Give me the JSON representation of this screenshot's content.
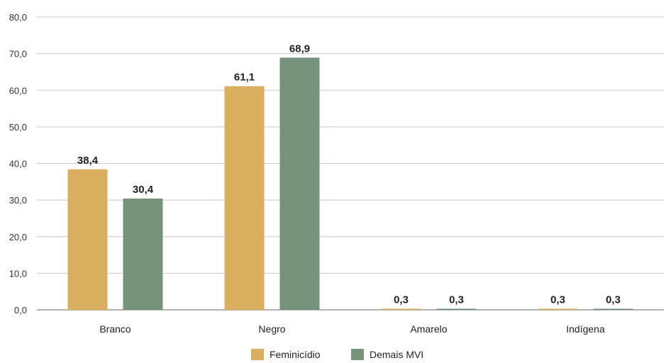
{
  "chart_data": {
    "type": "bar",
    "categories": [
      "Branco",
      "Negro",
      "Amarelo",
      "Indígena"
    ],
    "series": [
      {
        "name": "Feminicídio",
        "color": "#D9AE5F",
        "values": [
          38.4,
          61.1,
          0.3,
          0.3
        ],
        "labels": [
          "38,4",
          "61,1",
          "0,3",
          "0,3"
        ]
      },
      {
        "name": "Demais MVI",
        "color": "#74937A",
        "values": [
          30.4,
          68.9,
          0.3,
          0.3
        ],
        "labels": [
          "30,4",
          "68,9",
          "0,3",
          "0,3"
        ]
      }
    ],
    "yticks": [
      0,
      10,
      20,
      30,
      40,
      50,
      60,
      70,
      80
    ],
    "ytick_labels": [
      "0,0",
      "10,0",
      "20,0",
      "30,0",
      "40,0",
      "50,0",
      "60,0",
      "70,0",
      "80,0"
    ],
    "ylim": [
      0,
      80
    ],
    "grid": true,
    "legend_position": "bottom-center",
    "title": "",
    "xlabel": "",
    "ylabel": ""
  }
}
